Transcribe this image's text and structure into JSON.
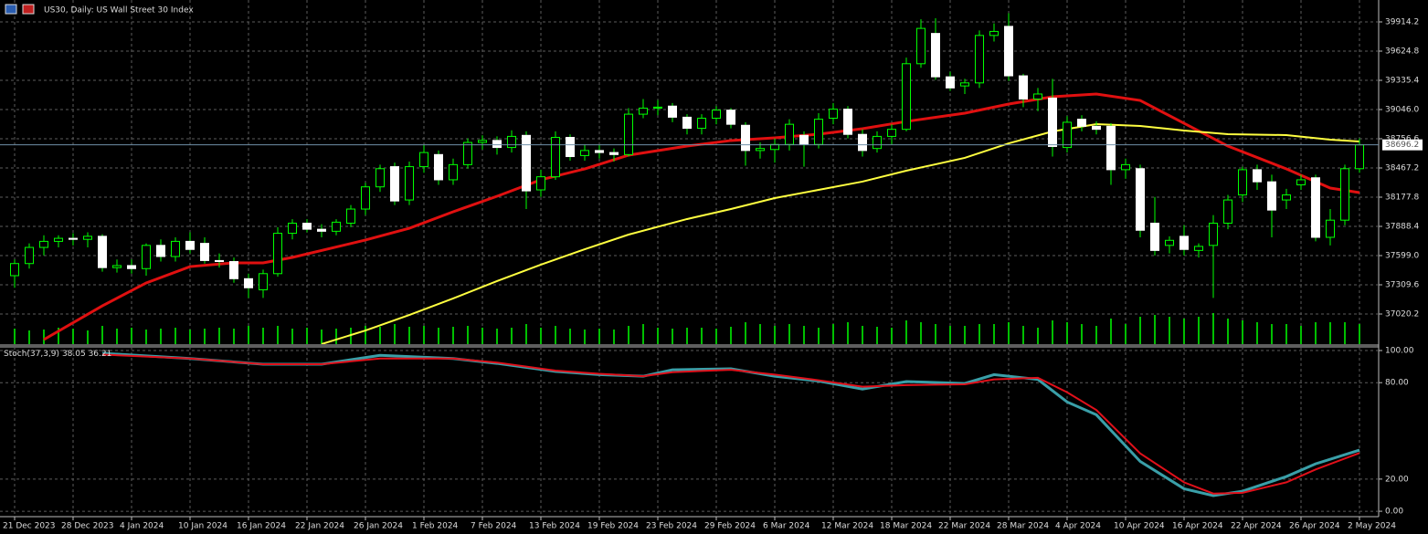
{
  "chart_data": [
    {
      "type": "candlestick",
      "title": "US30, Daily:  US Wall Street 30 Index",
      "categories": [
        "21 Dec 2023",
        null,
        null,
        null,
        "28 Dec 2023",
        null,
        null,
        null,
        "4 Jan 2024",
        null,
        null,
        null,
        "10 Jan 2024",
        null,
        null,
        null,
        "16 Jan 2024",
        null,
        null,
        null,
        "22 Jan 2024",
        null,
        null,
        null,
        "26 Jan 2024",
        null,
        null,
        null,
        "1 Feb 2024",
        null,
        null,
        null,
        "7 Feb 2024",
        null,
        null,
        null,
        "13 Feb 2024",
        null,
        null,
        null,
        "19 Feb 2024",
        null,
        null,
        null,
        "23 Feb 2024",
        null,
        null,
        null,
        "29 Feb 2024",
        null,
        null,
        null,
        "6 Mar 2024",
        null,
        null,
        null,
        "12 Mar 2024",
        null,
        null,
        null,
        "18 Mar 2024",
        null,
        null,
        null,
        "22 Mar 2024",
        null,
        null,
        null,
        "28 Mar 2024",
        null,
        null,
        null,
        "4 Apr 2024",
        null,
        null,
        null,
        "10 Apr 2024",
        null,
        null,
        null,
        "16 Apr 2024",
        null,
        null,
        null,
        "22 Apr 2024",
        null,
        null,
        null,
        "26 Apr 2024",
        null,
        null,
        null,
        "2 May 2024"
      ],
      "open": [
        37400,
        37520,
        37680,
        37740,
        37770,
        37760,
        37790,
        37480,
        37500,
        37470,
        37700,
        37590,
        37740,
        37720,
        37550,
        37540,
        37370,
        37260,
        37420,
        37820,
        37920,
        37860,
        37840,
        37920,
        38060,
        38280,
        38480,
        38150,
        38480,
        38600,
        38350,
        38500,
        38720,
        38740,
        38670,
        38790,
        38250,
        38380,
        38770,
        38590,
        38640,
        38620,
        38600,
        39000,
        39060,
        39080,
        38970,
        38860,
        38960,
        39040,
        38890,
        38640,
        38650,
        38700,
        38790,
        38700,
        38960,
        39050,
        38800,
        38660,
        38780,
        38850,
        39500,
        39800,
        39370,
        39280,
        39310,
        39780,
        39870,
        39380,
        39150,
        39160,
        38670,
        38950,
        38880,
        38880,
        38450,
        38460,
        37920,
        37700,
        37790,
        37650,
        37700,
        37920,
        38200,
        38450,
        38330,
        38150,
        38300,
        38370,
        37780,
        37950,
        38460
      ],
      "high": [
        37560,
        37720,
        37800,
        37800,
        37820,
        37830,
        37810,
        37560,
        37560,
        37720,
        37760,
        37780,
        37830,
        37780,
        37620,
        37580,
        37420,
        37460,
        37880,
        37960,
        37960,
        37910,
        37960,
        38100,
        38320,
        38500,
        38520,
        38530,
        38700,
        38640,
        38560,
        38760,
        38790,
        38780,
        38840,
        38830,
        38450,
        38830,
        38800,
        38700,
        38700,
        38660,
        39060,
        39150,
        39140,
        39110,
        39000,
        39000,
        39080,
        39060,
        38920,
        38720,
        38760,
        38950,
        38830,
        39010,
        39110,
        39080,
        38850,
        38830,
        38900,
        39560,
        39940,
        39950,
        39420,
        39350,
        39830,
        39900,
        40000,
        39400,
        39260,
        39350,
        38980,
        38990,
        38930,
        38910,
        38560,
        38500,
        38180,
        37790,
        37900,
        37720,
        38000,
        38200,
        38480,
        38500,
        38400,
        38260,
        38400,
        38400,
        38060,
        38500,
        38760
      ],
      "low": [
        37280,
        37470,
        37600,
        37680,
        37700,
        37680,
        37440,
        37430,
        37420,
        37400,
        37540,
        37540,
        37620,
        37520,
        37480,
        37330,
        37180,
        37180,
        37390,
        37760,
        37830,
        37780,
        37800,
        37880,
        38000,
        38230,
        38100,
        38100,
        38420,
        38300,
        38300,
        38460,
        38650,
        38600,
        38620,
        38060,
        38180,
        38350,
        38540,
        38540,
        38560,
        38530,
        38580,
        38960,
        38990,
        38920,
        38800,
        38800,
        38900,
        38860,
        38490,
        38560,
        38520,
        38640,
        38480,
        38660,
        38900,
        38760,
        38580,
        38620,
        38700,
        38830,
        39460,
        39340,
        39230,
        39200,
        39260,
        39720,
        39330,
        39070,
        39030,
        38580,
        38620,
        38830,
        38800,
        38300,
        38360,
        37780,
        37600,
        37620,
        37600,
        37580,
        37180,
        37860,
        38130,
        38250,
        37780,
        38060,
        38250,
        37740,
        37700,
        37900,
        38420
      ],
      "close": [
        37520,
        37680,
        37740,
        37770,
        37760,
        37790,
        37480,
        37500,
        37470,
        37700,
        37590,
        37740,
        37660,
        37550,
        37540,
        37370,
        37280,
        37420,
        37820,
        37920,
        37860,
        37840,
        37930,
        38060,
        38280,
        38460,
        38140,
        38480,
        38620,
        38350,
        38500,
        38720,
        38740,
        38670,
        38780,
        38240,
        38380,
        38770,
        38580,
        38640,
        38620,
        38600,
        39000,
        39060,
        39070,
        38970,
        38860,
        38960,
        39040,
        38900,
        38640,
        38660,
        38700,
        38900,
        38700,
        38950,
        39050,
        38800,
        38640,
        38780,
        38850,
        39500,
        39850,
        39370,
        39260,
        39310,
        39780,
        39820,
        39380,
        39150,
        39200,
        38680,
        38920,
        38880,
        38850,
        38450,
        38500,
        37850,
        37650,
        37750,
        37660,
        37690,
        37920,
        38150,
        38450,
        38330,
        38050,
        38200,
        38350,
        37780,
        37950,
        38460,
        38696.2
      ],
      "volume": [
        17,
        15,
        16,
        18,
        17,
        15,
        20,
        17,
        18,
        16,
        17,
        18,
        16,
        17,
        18,
        17,
        20,
        18,
        20,
        17,
        18,
        16,
        17,
        18,
        20,
        19,
        22,
        19,
        20,
        18,
        19,
        20,
        18,
        17,
        18,
        22,
        18,
        20,
        17,
        16,
        17,
        16,
        20,
        22,
        18,
        17,
        18,
        18,
        17,
        19,
        24,
        22,
        20,
        22,
        20,
        18,
        22,
        24,
        20,
        19,
        18,
        26,
        24,
        22,
        20,
        20,
        22,
        22,
        24,
        20,
        18,
        26,
        24,
        22,
        20,
        28,
        22,
        30,
        32,
        30,
        28,
        30,
        34,
        28,
        26,
        24,
        22,
        22,
        20,
        24,
        24,
        24,
        22
      ],
      "vlim": [
        0,
        100
      ],
      "up_color": "#00ff00",
      "down_color": "#ffffff",
      "volume_color": "#00ff00",
      "moving_averages": [
        {
          "color": "#e01010",
          "x": [
            2,
            6,
            9,
            12,
            15,
            17,
            19,
            24,
            27,
            30,
            33,
            36,
            39,
            42,
            46,
            49,
            52,
            55,
            58,
            61,
            65,
            68,
            71,
            74,
            77,
            80,
            83,
            87,
            90,
            92
          ],
          "values": [
            36767,
            37101,
            37328,
            37490,
            37527,
            37527,
            37581,
            37753,
            37870,
            38033,
            38187,
            38350,
            38458,
            38594,
            38684,
            38739,
            38766,
            38802,
            38856,
            38928,
            39010,
            39100,
            39173,
            39200,
            39136,
            38910,
            38684,
            38458,
            38268,
            38223
          ]
        },
        {
          "color": "#ffff40",
          "x": [
            21,
            24,
            27,
            30,
            33,
            36,
            39,
            42,
            46,
            49,
            52,
            55,
            58,
            61,
            65,
            68,
            71,
            74,
            77,
            80,
            83,
            87,
            90,
            92
          ],
          "values": [
            36722,
            36857,
            37011,
            37174,
            37346,
            37509,
            37662,
            37807,
            37961,
            38060,
            38169,
            38250,
            38332,
            38440,
            38567,
            38711,
            38829,
            38901,
            38883,
            38838,
            38802,
            38793,
            38748,
            38729
          ]
        }
      ],
      "ylim": [
        36721.7,
        40131.3
      ],
      "yticks": [
        39914.2,
        39624.8,
        39335.4,
        {
          "value": 39046,
          "label": "39046.0"
        },
        38756.6,
        38467.2,
        38177.8,
        37888.4,
        {
          "value": 37599,
          "label": "37599.0"
        },
        37309.6,
        37020.2
      ],
      "grid": true
    },
    {
      "type": "line",
      "title": "Stoch(37,3,9)",
      "series": [
        {
          "color": "#3a9fa8",
          "x": [
            6,
            12,
            17,
            21,
            25,
            30,
            33,
            37,
            40,
            43,
            45,
            49,
            52,
            55,
            58,
            61,
            65,
            67,
            70,
            72,
            74,
            77,
            80,
            82,
            84,
            87,
            89,
            92
          ],
          "values": [
            98.3,
            95,
            91.5,
            91.5,
            97,
            95,
            92,
            87,
            85,
            84,
            88,
            88.6,
            84,
            81,
            76,
            80.7,
            79.5,
            85,
            82,
            68,
            60,
            31,
            14,
            9.7,
            12.5,
            21.6,
            29.5,
            38.05
          ]
        },
        {
          "color": "#e0101a",
          "x": [
            6,
            12,
            17,
            21,
            25,
            30,
            33,
            37,
            40,
            43,
            45,
            49,
            52,
            55,
            58,
            61,
            65,
            67,
            70,
            72,
            74,
            77,
            80,
            82,
            84,
            87,
            89,
            92
          ],
          "values": [
            97.5,
            95,
            91.5,
            91.5,
            95,
            95,
            92.5,
            87.5,
            85.5,
            84,
            86.5,
            88,
            85,
            81.5,
            77.5,
            78.5,
            79,
            82,
            83,
            74,
            63,
            36,
            18,
            11,
            11.5,
            18,
            26,
            36.21
          ]
        }
      ],
      "ylim": [
        -2.8,
        103.4
      ],
      "yticks": [
        {
          "value": 100,
          "label": "100.00"
        },
        {
          "value": 80,
          "label": "80.00"
        },
        {
          "value": 20,
          "label": "20.00"
        },
        {
          "value": 0,
          "label": "0.00"
        }
      ],
      "grid": true
    }
  ]
}
